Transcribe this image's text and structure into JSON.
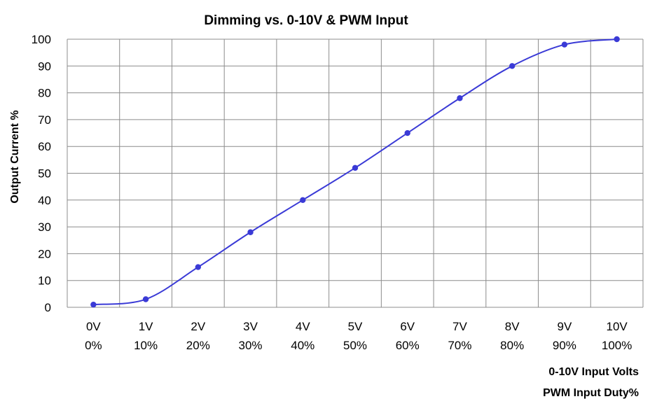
{
  "chart_data": {
    "type": "line",
    "title": "Dimming vs. 0-10V & PWM Input",
    "ylabel": "Output Current %",
    "xlabels": [
      "0-10V Input Volts",
      "PWM Input Duty%"
    ],
    "categories_volts": [
      "0V",
      "1V",
      "2V",
      "3V",
      "4V",
      "5V",
      "6V",
      "7V",
      "8V",
      "9V",
      "10V"
    ],
    "categories_pwm": [
      "0%",
      "10%",
      "20%",
      "30%",
      "40%",
      "50%",
      "60%",
      "70%",
      "80%",
      "90%",
      "100%"
    ],
    "ylim": [
      0,
      100
    ],
    "yticks": [
      "0",
      "10",
      "20",
      "30",
      "40",
      "50",
      "60",
      "70",
      "80",
      "90",
      "100"
    ],
    "grid": true,
    "series": [
      {
        "values": [
          1,
          3,
          15,
          28,
          40,
          52,
          65,
          78,
          90,
          98,
          100
        ],
        "color": "#3a3ad6",
        "smooth": true,
        "markers": true
      }
    ]
  }
}
